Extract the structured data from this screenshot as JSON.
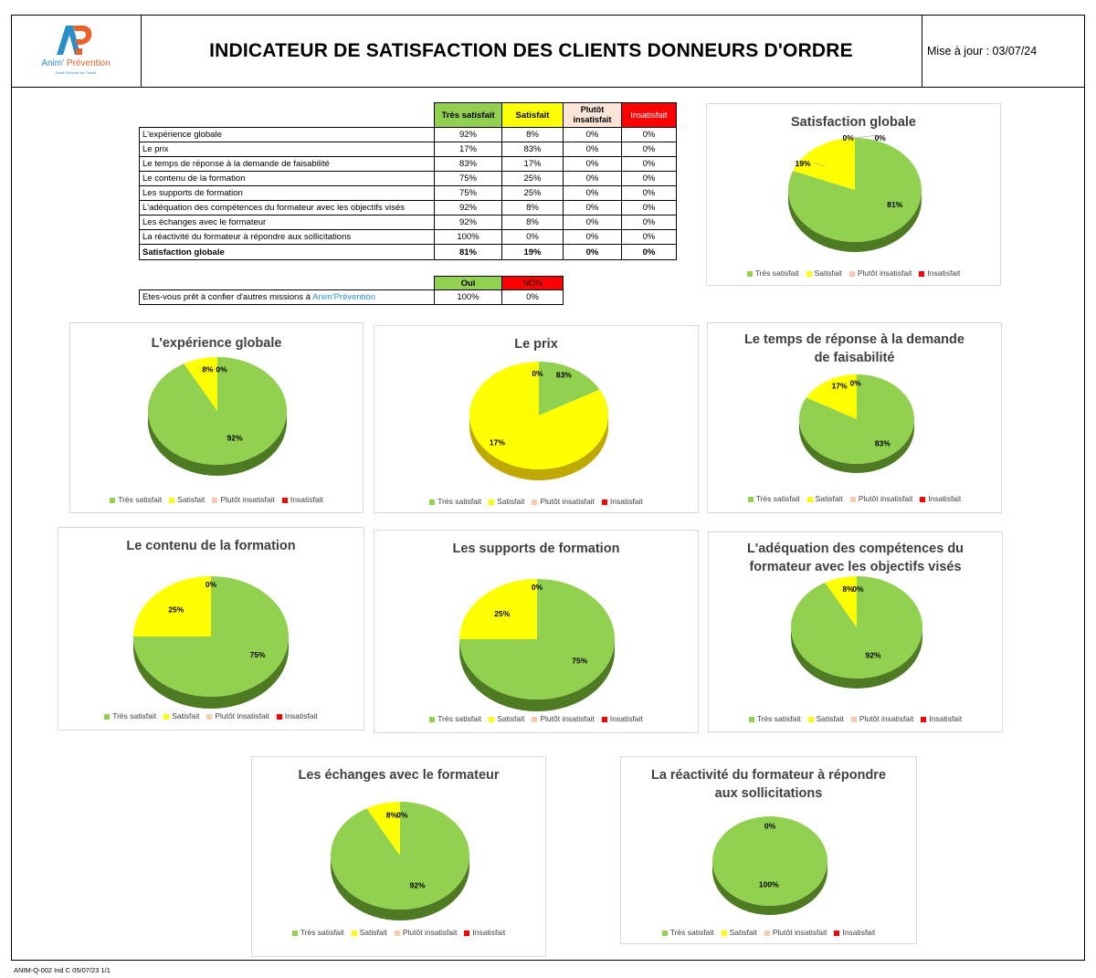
{
  "header": {
    "logo_name_a": "Anim'",
    "logo_name_b": " Prévention",
    "logo_tagline": "Santé Sécurité au Travail",
    "title": "INDICATEUR DE SATISFACTION DES CLIENTS DONNEURS D'ORDRE",
    "update": "Mise à jour : 03/07/24"
  },
  "colors": {
    "tres_satisfait": "#92d050",
    "satisfait": "#ffff00",
    "plutot_insatisfait": "#f8cbad",
    "insatisfait": "#ff0000"
  },
  "table": {
    "headers": [
      "Très satisfait",
      "Satisfait",
      "Plutôt insatisfait",
      "Insatisfait"
    ],
    "rows": [
      {
        "label": "L'expérience globale",
        "values": [
          "92%",
          "8%",
          "0%",
          "0%"
        ]
      },
      {
        "label": "Le prix",
        "values": [
          "17%",
          "83%",
          "0%",
          "0%"
        ]
      },
      {
        "label": "Le temps de réponse à la demande de faisabilité",
        "values": [
          "83%",
          "17%",
          "0%",
          "0%"
        ]
      },
      {
        "label": "Le contenu de la formation",
        "values": [
          "75%",
          "25%",
          "0%",
          "0%"
        ]
      },
      {
        "label": "Les supports de formation",
        "values": [
          "75%",
          "25%",
          "0%",
          "0%"
        ]
      },
      {
        "label": "L'adéquation des compétences du formateur avec les objectifs visés",
        "values": [
          "92%",
          "8%",
          "0%",
          "0%"
        ]
      },
      {
        "label": "Les échanges avec le formateur",
        "values": [
          "92%",
          "8%",
          "0%",
          "0%"
        ]
      },
      {
        "label": "La réactivité du formateur à répondre aux sollicitations",
        "values": [
          "100%",
          "0%",
          "0%",
          "0%"
        ]
      }
    ],
    "total": {
      "label": "Satisfaction globale",
      "values": [
        "81%",
        "19%",
        "0%",
        "0%"
      ]
    }
  },
  "missions": {
    "headers": [
      "Oui",
      "NON"
    ],
    "question_a": "Etes-vous prêt à confier d'autres missions à ",
    "question_b": "Anim'Prévention",
    "values": [
      "100%",
      "0%"
    ]
  },
  "legend": [
    "Très satisfait",
    "Satisfait",
    "Plutôt insatisfait",
    "Insatisfait"
  ],
  "chart_data": [
    {
      "type": "pie",
      "title": "Satisfaction globale",
      "categories": [
        "Très satisfait",
        "Satisfait",
        "Plutôt insatisfait",
        "Insatisfait"
      ],
      "values": [
        81,
        19,
        0,
        0
      ]
    },
    {
      "type": "pie",
      "title": "L'expérience globale",
      "categories": [
        "Très satisfait",
        "Satisfait",
        "Plutôt insatisfait",
        "Insatisfait"
      ],
      "values": [
        92,
        8,
        0,
        0
      ]
    },
    {
      "type": "pie",
      "title": "Le prix",
      "categories": [
        "Très satisfait",
        "Satisfait",
        "Plutôt insatisfait",
        "Insatisfait"
      ],
      "values": [
        17,
        83,
        0,
        0
      ]
    },
    {
      "type": "pie",
      "title": "Le temps de réponse à la demande de faisabilité",
      "categories": [
        "Très satisfait",
        "Satisfait",
        "Plutôt insatisfait",
        "Insatisfait"
      ],
      "values": [
        83,
        17,
        0,
        0
      ]
    },
    {
      "type": "pie",
      "title": "Le contenu de la formation",
      "categories": [
        "Très satisfait",
        "Satisfait",
        "Plutôt insatisfait",
        "Insatisfait"
      ],
      "values": [
        75,
        25,
        0,
        0
      ]
    },
    {
      "type": "pie",
      "title": "Les supports de formation",
      "categories": [
        "Très satisfait",
        "Satisfait",
        "Plutôt insatisfait",
        "Insatisfait"
      ],
      "values": [
        75,
        25,
        0,
        0
      ]
    },
    {
      "type": "pie",
      "title": "L'adéquation des compétences du formateur avec les objectifs visés",
      "categories": [
        "Très satisfait",
        "Satisfait",
        "Plutôt insatisfait",
        "Insatisfait"
      ],
      "values": [
        92,
        8,
        0,
        0
      ]
    },
    {
      "type": "pie",
      "title": "Les échanges avec le formateur",
      "categories": [
        "Très satisfait",
        "Satisfait",
        "Plutôt insatisfait",
        "Insatisfait"
      ],
      "values": [
        92,
        8,
        0,
        0
      ]
    },
    {
      "type": "pie",
      "title": "La réactivité du formateur à répondre aux sollicitations",
      "categories": [
        "Très satisfait",
        "Satisfait",
        "Plutôt insatisfait",
        "Insatisfait"
      ],
      "values": [
        100,
        0,
        0,
        0
      ]
    }
  ],
  "footer": "ANIM-Q-002 Ind C 05/07/23 1/1"
}
